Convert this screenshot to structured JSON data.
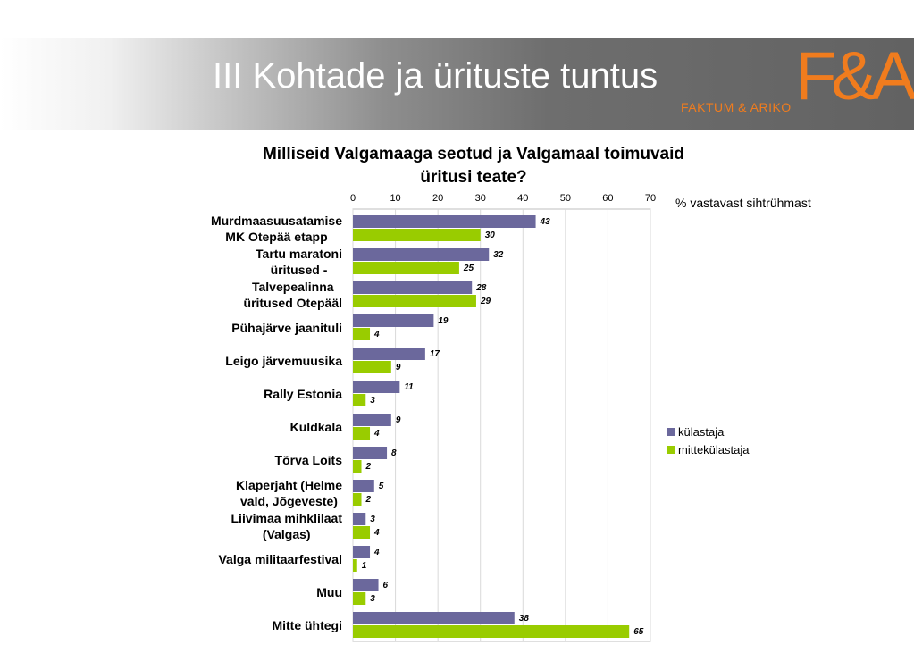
{
  "header": {
    "title": "III Kohtade ja ürituste tuntus",
    "logo_mark": "F&A",
    "logo_sub": "FAKTUM & ARIKO",
    "logo_color": "#f07c1e"
  },
  "colors": {
    "kulastaja": "#6b689c",
    "mittekulastaja": "#99cc00"
  },
  "chart_data": {
    "type": "bar",
    "orientation": "horizontal",
    "title": "Milliseid Valgamaaga seotud ja Valgamaal toimuvaid üritusi teate?",
    "unit_note": "% vastavast sihtrühmast",
    "categories": [
      "Murdmaasuusatamise MK Otepää etapp",
      "Tartu maratoni üritused -",
      "Talvepealinna üritused Otepääl",
      "Pühajärve jaanituli",
      "Leigo järvemuusika",
      "Rally Estonia",
      "Kuldkala",
      "Tõrva Loits",
      "Klaperjaht  (Helme vald, Jõgeveste)",
      "Liivimaa mihklilaat (Valgas)",
      "Valga militaarfestival",
      "Muu",
      "Mitte ühtegi"
    ],
    "category_lines": [
      [
        "Murdmaasuusatamise",
        "MK Otepää etapp"
      ],
      [
        "Tartu maratoni",
        "üritused -"
      ],
      [
        "Talvepealinna",
        "üritused Otepääl"
      ],
      [
        "Pühajärve jaanituli"
      ],
      [
        "Leigo järvemuusika"
      ],
      [
        "Rally Estonia"
      ],
      [
        "Kuldkala"
      ],
      [
        "Tõrva Loits"
      ],
      [
        "Klaperjaht  (Helme",
        "vald, Jõgeveste)"
      ],
      [
        "Liivimaa mihklilaat",
        "(Valgas)"
      ],
      [
        "Valga militaarfestival"
      ],
      [
        "Muu"
      ],
      [
        "Mitte ühtegi"
      ]
    ],
    "series": [
      {
        "name": "külastaja",
        "values": [
          43,
          32,
          28,
          19,
          17,
          11,
          9,
          8,
          5,
          3,
          4,
          6,
          38
        ]
      },
      {
        "name": "mittekülastaja",
        "values": [
          30,
          25,
          29,
          4,
          9,
          3,
          4,
          2,
          2,
          4,
          1,
          3,
          65
        ]
      }
    ],
    "xlim": [
      0,
      70
    ],
    "xticks": [
      0,
      10,
      20,
      30,
      40,
      50,
      60,
      70
    ],
    "grid": true,
    "legend": "right"
  }
}
